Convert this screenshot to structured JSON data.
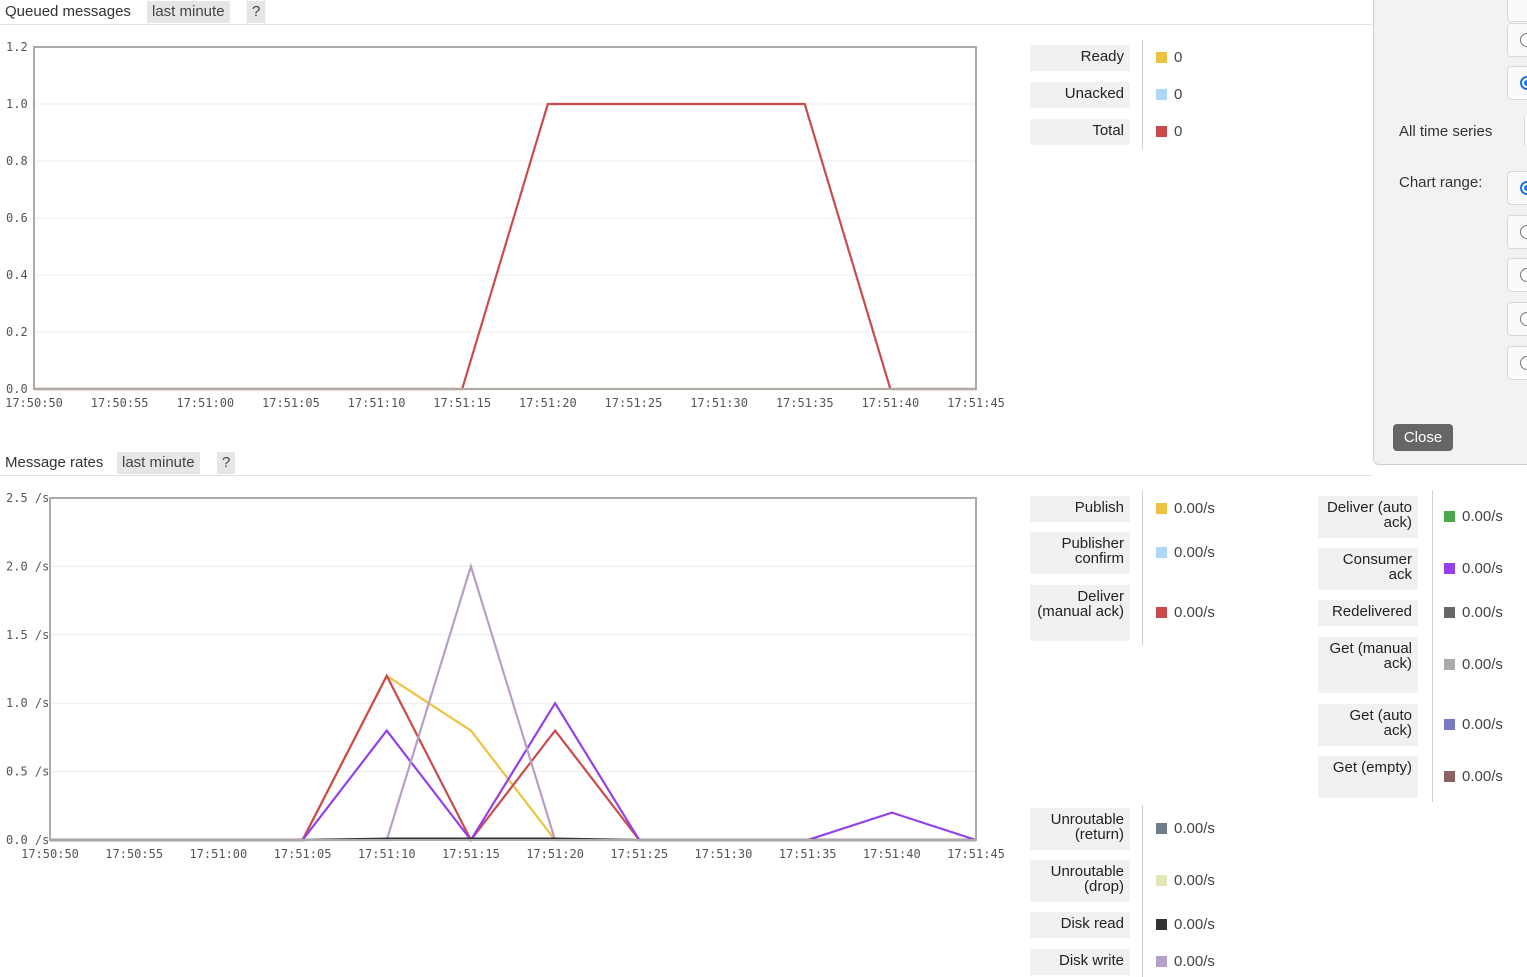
{
  "queued": {
    "title": "Queued messages",
    "range_pill": "last minute",
    "help_pill": "?",
    "legend": [
      {
        "label": "Ready",
        "value": "0",
        "color": "#edc240"
      },
      {
        "label": "Unacked",
        "value": "0",
        "color": "#afd8f8"
      },
      {
        "label": "Total",
        "value": "0",
        "color": "#cb4b4b"
      }
    ]
  },
  "rates": {
    "title": "Message rates",
    "range_pill": "last minute",
    "help_pill": "?",
    "legend_left": [
      {
        "label": "Publish",
        "value": "0.00/s",
        "color": "#edc240"
      },
      {
        "label": "Publisher confirm",
        "value": "0.00/s",
        "color": "#afd8f8"
      },
      {
        "label": "Deliver (manual ack)",
        "value": "0.00/s",
        "color": "#cb4b4b"
      }
    ],
    "legend_right": [
      {
        "label": "Deliver (auto ack)",
        "value": "0.00/s",
        "color": "#4da74d"
      },
      {
        "label": "Consumer ack",
        "value": "0.00/s",
        "color": "#9440ed"
      },
      {
        "label": "Redelivered",
        "value": "0.00/s",
        "color": "#666666"
      },
      {
        "label": "Get (manual ack)",
        "value": "0.00/s",
        "color": "#aaaaaa"
      },
      {
        "label": "Get (auto ack)",
        "value": "0.00/s",
        "color": "#7c79c3"
      },
      {
        "label": "Get (empty)",
        "value": "0.00/s",
        "color": "#8d6262"
      }
    ],
    "legend_bottom": [
      {
        "label": "Unroutable (return)",
        "value": "0.00/s",
        "color": "#6e7c87"
      },
      {
        "label": "Unroutable (drop)",
        "value": "0.00/s",
        "color": "#e3e6b5"
      },
      {
        "label": "Disk read",
        "value": "0.00/s",
        "color": "#333333"
      },
      {
        "label": "Disk write",
        "value": "0.00/s",
        "color": "#b7a0c7"
      }
    ]
  },
  "options_panel": {
    "all_time_series": "All time series",
    "chart_range_label": "Chart range:",
    "close_label": "Close"
  },
  "chart_data": [
    {
      "type": "line",
      "x": [
        "17:50:50",
        "17:50:55",
        "17:51:00",
        "17:51:05",
        "17:51:10",
        "17:51:15",
        "17:51:20",
        "17:51:25",
        "17:51:30",
        "17:51:35",
        "17:51:40",
        "17:51:45"
      ],
      "ylim": [
        0,
        1.2
      ],
      "yticks": [
        "0.0",
        "0.2",
        "0.4",
        "0.6",
        "0.8",
        "1.0",
        "1.2"
      ],
      "series": [
        {
          "name": "Ready",
          "color": "#edc240",
          "values": [
            0,
            0,
            0,
            0,
            0,
            0,
            0,
            0,
            0,
            0,
            0,
            0
          ]
        },
        {
          "name": "Total",
          "color": "#cb4b4b",
          "values": [
            0,
            0,
            0,
            0,
            0,
            0,
            1,
            1,
            1,
            1,
            0,
            0
          ]
        }
      ]
    },
    {
      "type": "line",
      "x": [
        "17:50:50",
        "17:50:55",
        "17:51:00",
        "17:51:05",
        "17:51:10",
        "17:51:15",
        "17:51:20",
        "17:51:25",
        "17:51:30",
        "17:51:35",
        "17:51:40",
        "17:51:45"
      ],
      "ylim": [
        0,
        2.5
      ],
      "yticks": [
        "0.0 /s",
        "0.5 /s",
        "1.0 /s",
        "1.5 /s",
        "2.0 /s",
        "2.5 /s"
      ],
      "series": [
        {
          "name": "Publish",
          "color": "#edc240",
          "values": [
            0,
            0,
            0,
            0,
            1.2,
            0.8,
            0,
            0,
            0,
            0,
            0,
            0
          ]
        },
        {
          "name": "Deliver (manual ack)",
          "color": "#cb4b4b",
          "values": [
            0,
            0,
            0,
            0,
            1.2,
            0,
            0.8,
            0,
            0,
            0,
            0,
            0
          ]
        },
        {
          "name": "Consumer ack",
          "color": "#9440ed",
          "values": [
            0,
            0,
            0,
            0,
            0.8,
            0,
            1.0,
            0,
            0,
            0,
            0.2,
            0
          ]
        },
        {
          "name": "Disk write",
          "color": "#b7a0c7",
          "values": [
            0,
            0,
            0,
            0,
            0,
            2.0,
            0,
            0,
            0,
            0,
            0,
            0
          ]
        },
        {
          "name": "Disk read",
          "color": "#333333",
          "values": [
            0,
            0,
            0,
            0,
            0.01,
            0.01,
            0.01,
            0,
            0,
            0,
            0,
            0
          ]
        }
      ]
    }
  ]
}
